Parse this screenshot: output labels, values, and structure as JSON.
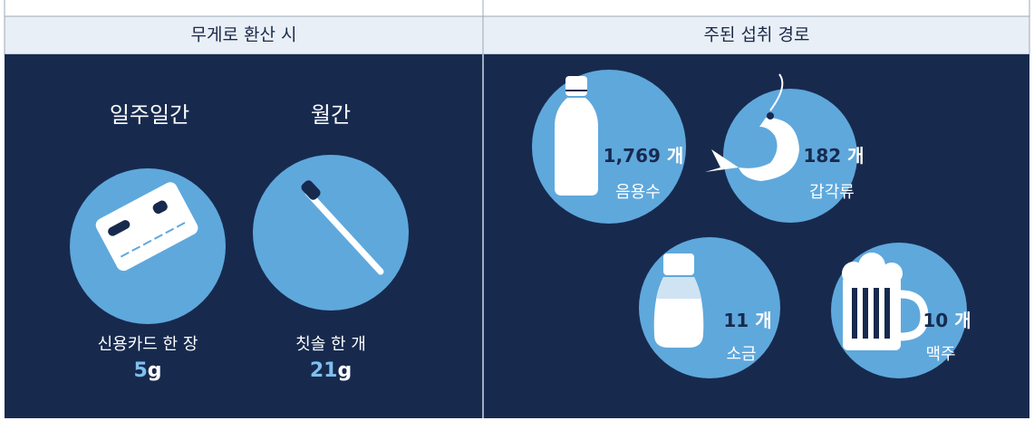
{
  "left": {
    "header": "무게로 환산 시",
    "items": [
      {
        "period": "일주일간",
        "label": "신용카드 한 장",
        "value": "5",
        "unit": "g"
      },
      {
        "period": "월간",
        "label": "칫솔 한 개",
        "value": "21",
        "unit": "g"
      }
    ]
  },
  "right": {
    "header": "주된 섭취 경로",
    "items": [
      {
        "value": "1,769",
        "unit": "개",
        "label": "음용수"
      },
      {
        "value": "182",
        "unit": "개",
        "label": "갑각류"
      },
      {
        "value": "11",
        "unit": "개",
        "label": "소금"
      },
      {
        "value": "10",
        "unit": "개",
        "label": "맥주"
      }
    ]
  }
}
